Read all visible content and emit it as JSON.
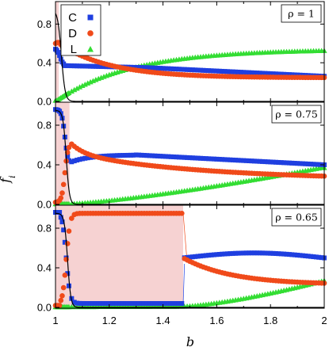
{
  "chart_data": {
    "type": "scatter",
    "xlabel": "b",
    "ylabel": "f_i",
    "xlim": [
      1.0,
      2.0
    ],
    "ylim": [
      0.0,
      1.0
    ],
    "x_ticks": [
      "1",
      "1.2",
      "1.4",
      "1.6",
      "1.8",
      "2"
    ],
    "y_ticks": [
      "0.0",
      "0.4",
      "0.8"
    ],
    "legend": {
      "placement": "top-left of top panel",
      "entries": [
        "C",
        "D",
        "L"
      ]
    },
    "colors": {
      "C": "#1f3fe0",
      "D": "#f04a1a",
      "L": "#33dd33",
      "shade": "#f6d2d2",
      "line": "#000000"
    },
    "panels": [
      {
        "annotation": "ρ = 1",
        "shade": [
          1.0,
          1.012
        ]
      },
      {
        "annotation": "ρ = 0.75",
        "shade": [
          1.0,
          1.052
        ]
      },
      {
        "annotation": "ρ = 0.65",
        "shade": [
          1.0,
          1.475
        ]
      }
    ]
  }
}
